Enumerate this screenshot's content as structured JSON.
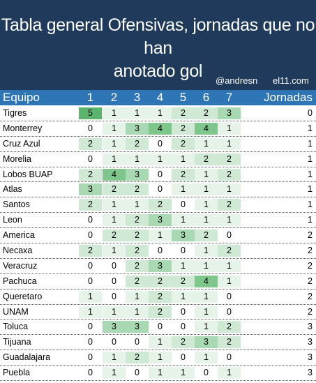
{
  "header": {
    "title_line1": "Tabla general Ofensivas, jornadas que no han",
    "title_line2": "anotado gol",
    "handle": "@andresn",
    "site": "el11.com"
  },
  "colors": {
    "header_bg": "#1f3a5a",
    "column_header_bg": "#2e75b6",
    "cell_level_0": "#ffffff",
    "cell_level_1": "#e5f3e8",
    "cell_level_2": "#cfe9d5",
    "cell_level_3": "#a9d9b3",
    "cell_level_4": "#7fc68d",
    "cell_level_5": "#5cb36c"
  },
  "table": {
    "columns": {
      "team": "Equipo",
      "numbers": [
        "1",
        "2",
        "3",
        "4",
        "5",
        "6",
        "7"
      ],
      "jornadas": "Jornadas"
    },
    "rows": [
      {
        "team": "Tigres",
        "values": [
          5,
          1,
          1,
          1,
          2,
          2,
          3
        ],
        "jornadas": 0
      },
      {
        "team": "Monterrey",
        "values": [
          0,
          1,
          3,
          4,
          2,
          4,
          1
        ],
        "jornadas": 1
      },
      {
        "team": "Cruz Azul",
        "values": [
          2,
          1,
          2,
          0,
          2,
          1,
          1
        ],
        "jornadas": 1
      },
      {
        "team": "Morelia",
        "values": [
          0,
          1,
          1,
          1,
          1,
          2,
          2
        ],
        "jornadas": 1
      },
      {
        "team": "Lobos BUAP",
        "values": [
          2,
          4,
          3,
          0,
          2,
          1,
          2
        ],
        "jornadas": 1
      },
      {
        "team": "Atlas",
        "values": [
          3,
          2,
          2,
          0,
          1,
          1,
          1
        ],
        "jornadas": 1
      },
      {
        "team": "Santos",
        "values": [
          2,
          1,
          1,
          2,
          0,
          1,
          2
        ],
        "jornadas": 1
      },
      {
        "team": "Leon",
        "values": [
          0,
          1,
          2,
          3,
          1,
          1,
          1
        ],
        "jornadas": 1
      },
      {
        "team": "America",
        "values": [
          0,
          2,
          2,
          1,
          3,
          2,
          0
        ],
        "jornadas": 2
      },
      {
        "team": "Necaxa",
        "values": [
          2,
          1,
          2,
          0,
          0,
          1,
          2
        ],
        "jornadas": 2
      },
      {
        "team": "Veracruz",
        "values": [
          0,
          0,
          2,
          3,
          1,
          1,
          1
        ],
        "jornadas": 2
      },
      {
        "team": "Pachuca",
        "values": [
          0,
          0,
          2,
          2,
          2,
          4,
          1
        ],
        "jornadas": 2
      },
      {
        "team": "Queretaro",
        "values": [
          1,
          0,
          1,
          2,
          1,
          1,
          0
        ],
        "jornadas": 2
      },
      {
        "team": "UNAM",
        "values": [
          1,
          1,
          1,
          2,
          0,
          1,
          0
        ],
        "jornadas": 2
      },
      {
        "team": "Toluca",
        "values": [
          0,
          3,
          3,
          0,
          0,
          1,
          2
        ],
        "jornadas": 3
      },
      {
        "team": "Tijuana",
        "values": [
          0,
          0,
          0,
          1,
          2,
          3,
          2
        ],
        "jornadas": 3
      },
      {
        "team": "Guadalajara",
        "values": [
          0,
          1,
          2,
          1,
          0,
          1,
          0
        ],
        "jornadas": 3
      },
      {
        "team": "Puebla",
        "values": [
          0,
          1,
          0,
          1,
          1,
          0,
          1
        ],
        "jornadas": 3
      }
    ]
  }
}
